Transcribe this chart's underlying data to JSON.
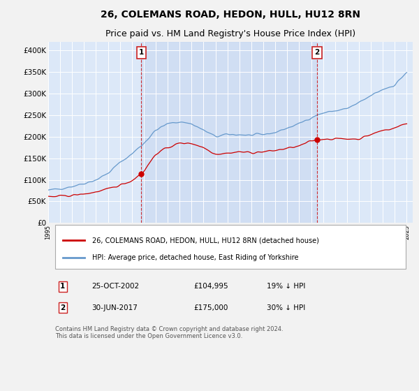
{
  "title": "26, COLEMANS ROAD, HEDON, HULL, HU12 8RN",
  "subtitle": "Price paid vs. HM Land Registry's House Price Index (HPI)",
  "title_fontsize": 10,
  "subtitle_fontsize": 9,
  "ylim": [
    0,
    420000
  ],
  "yticks": [
    0,
    50000,
    100000,
    150000,
    200000,
    250000,
    300000,
    350000,
    400000
  ],
  "ytick_labels": [
    "£0",
    "£50K",
    "£100K",
    "£150K",
    "£200K",
    "£250K",
    "£300K",
    "£350K",
    "£400K"
  ],
  "bg_color": "#f2f2f2",
  "plot_bg": "#dce8f8",
  "grid_color": "#ffffff",
  "line1_color": "#cc0000",
  "line2_color": "#6699cc",
  "shade_color": "#c8d8f0",
  "sale1_x": 2002.8,
  "sale1_price": 104995,
  "sale2_x": 2017.5,
  "sale2_price": 175000,
  "legend1_label": "26, COLEMANS ROAD, HEDON, HULL, HU12 8RN (detached house)",
  "legend2_label": "HPI: Average price, detached house, East Riding of Yorkshire",
  "table_rows": [
    [
      "1",
      "25-OCT-2002",
      "£104,995",
      "19% ↓ HPI"
    ],
    [
      "2",
      "30-JUN-2017",
      "£175,000",
      "30% ↓ HPI"
    ]
  ],
  "footnote": "Contains HM Land Registry data © Crown copyright and database right 2024.\nThis data is licensed under the Open Government Licence v3.0.",
  "xlim_start": 1995.0,
  "xlim_end": 2025.5
}
